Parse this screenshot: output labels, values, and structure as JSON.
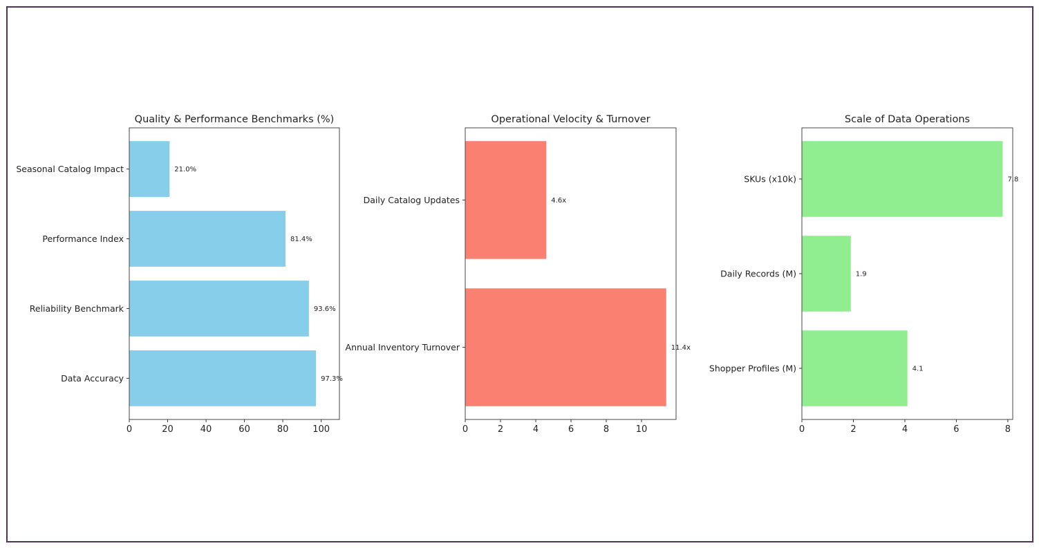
{
  "chart_data": [
    {
      "type": "bar",
      "orientation": "horizontal",
      "title": "Quality & Performance Benchmarks (%)",
      "categories": [
        "Data Accuracy",
        "Reliability Benchmark",
        "Performance Index",
        "Seasonal Catalog Impact"
      ],
      "values": [
        97.3,
        93.6,
        81.4,
        21.0
      ],
      "data_labels": [
        "97.3%",
        "93.6%",
        "81.4%",
        "21.0%"
      ],
      "xticks": [
        0,
        20,
        40,
        60,
        80,
        100
      ],
      "xlim": [
        0,
        109.5
      ],
      "color": "#87CEEB",
      "xlabel": "",
      "ylabel": "",
      "grid": false
    },
    {
      "type": "bar",
      "orientation": "horizontal",
      "title": "Operational Velocity & Turnover",
      "categories": [
        "Annual Inventory Turnover",
        "Daily Catalog Updates"
      ],
      "values": [
        11.4,
        4.6
      ],
      "data_labels": [
        "11.4x",
        "4.6x"
      ],
      "xticks": [
        0,
        2,
        4,
        6,
        8,
        10
      ],
      "xlim": [
        0,
        11.96
      ],
      "color": "#FA8072",
      "xlabel": "",
      "ylabel": "",
      "grid": false
    },
    {
      "type": "bar",
      "orientation": "horizontal",
      "title": "Scale of Data Operations",
      "categories": [
        "Shopper Profiles (M)",
        "Daily Records (M)",
        "SKUs (x10k)"
      ],
      "values": [
        4.1,
        1.9,
        7.8
      ],
      "data_labels": [
        "4.1",
        "1.9",
        "7.8"
      ],
      "xticks": [
        0,
        2,
        4,
        6,
        8
      ],
      "xlim": [
        0,
        8.19
      ],
      "color": "#90EE90",
      "xlabel": "",
      "ylabel": "",
      "grid": false
    }
  ]
}
